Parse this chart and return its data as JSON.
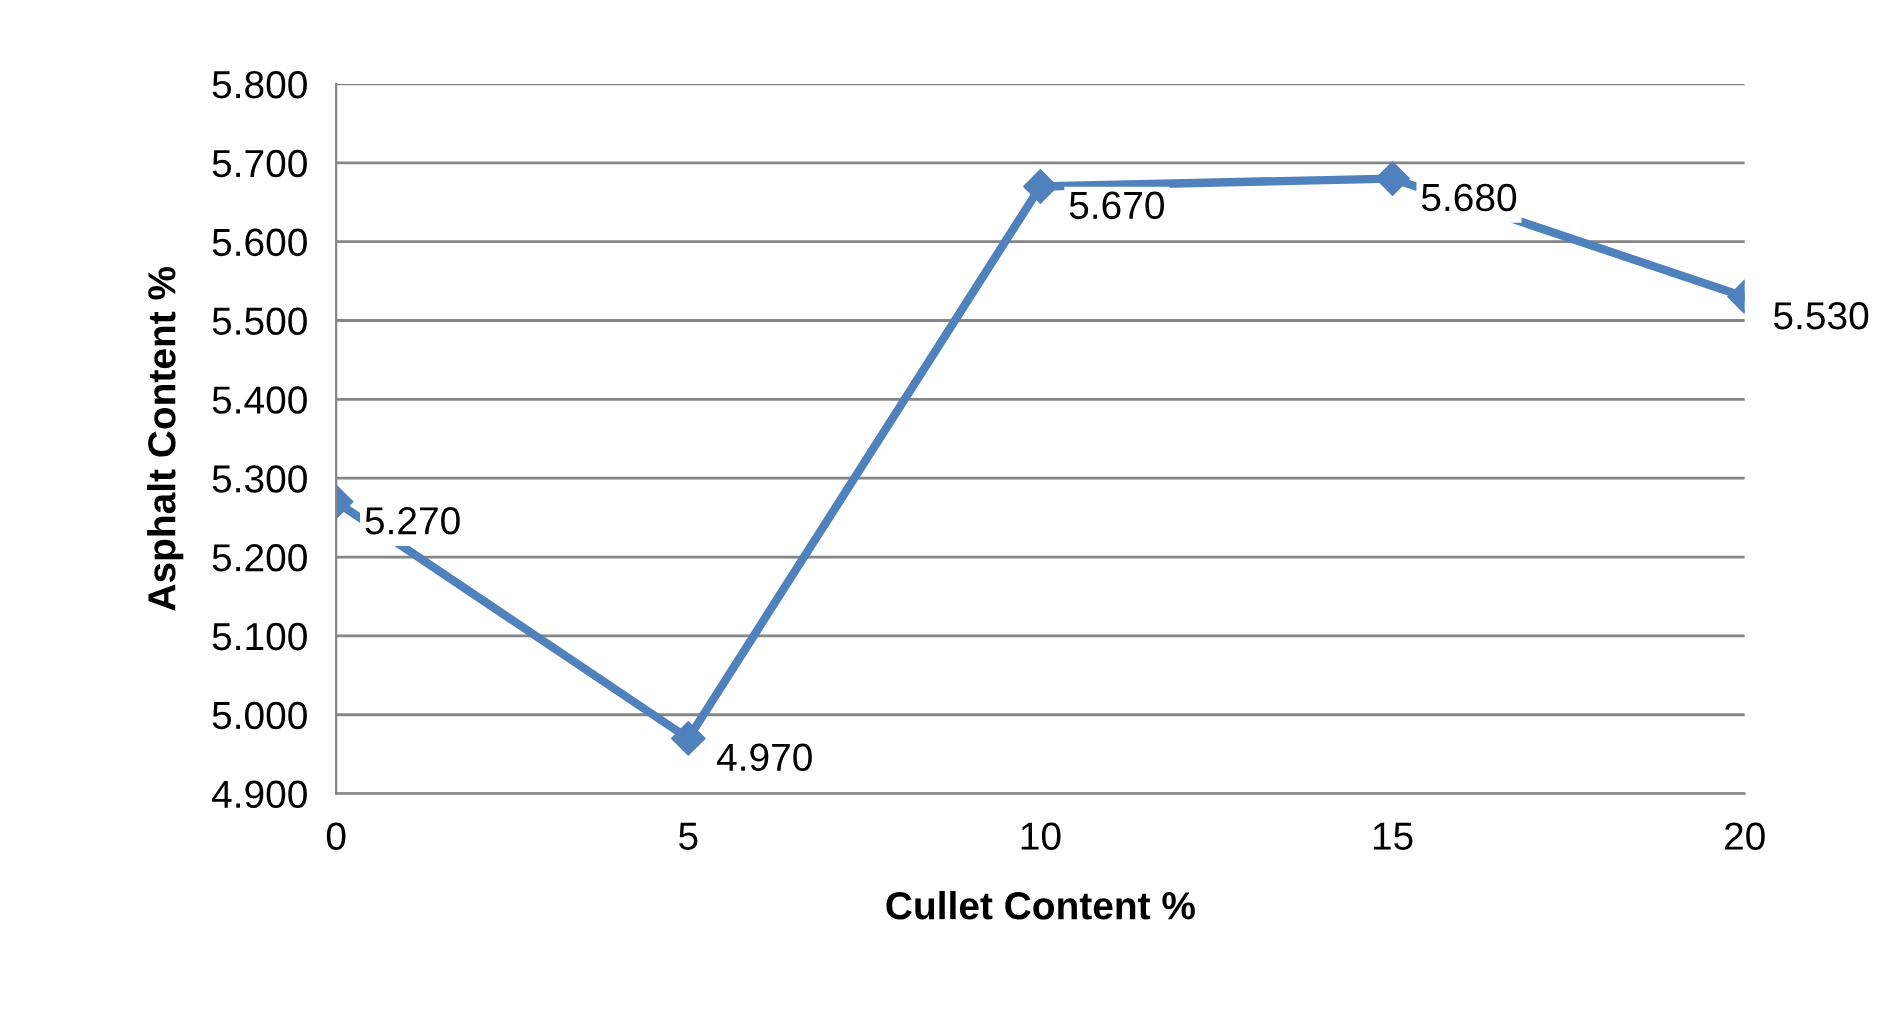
{
  "chart_data": {
    "type": "line",
    "xlabel": "Cullet Content %",
    "ylabel": "Asphalt Content %",
    "x": [
      0,
      5,
      10,
      15,
      20
    ],
    "series": [
      {
        "color": "#4f81bd",
        "values": [
          5.27,
          4.97,
          5.67,
          5.68,
          5.53
        ],
        "value_labels": [
          "5.270",
          "4.970",
          "5.670",
          "5.680",
          "5.530"
        ]
      }
    ],
    "xlim": [
      0,
      20
    ],
    "xticks": [
      0,
      5,
      10,
      15,
      20
    ],
    "ylim": [
      4.9,
      5.8
    ],
    "yticks": [
      {
        "value": 4.9,
        "label": "4.900"
      },
      {
        "value": 5.0,
        "label": "5.000"
      },
      {
        "value": 5.1,
        "label": "5.100"
      },
      {
        "value": 5.2,
        "label": "5.200"
      },
      {
        "value": 5.3,
        "label": "5.300"
      },
      {
        "value": 5.4,
        "label": "5.400"
      },
      {
        "value": 5.5,
        "label": "5.500"
      },
      {
        "value": 5.6,
        "label": "5.600"
      },
      {
        "value": 5.7,
        "label": "5.700"
      },
      {
        "value": 5.8,
        "label": "5.800"
      }
    ],
    "grid": "y",
    "legend": false,
    "marker": "diamond",
    "line_style": "solid"
  }
}
